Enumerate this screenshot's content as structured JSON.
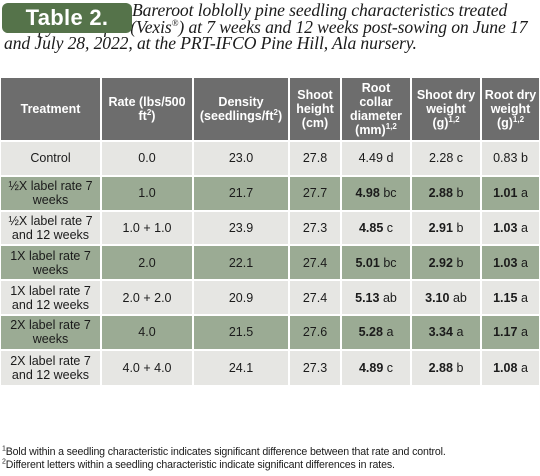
{
  "caption": {
    "label": "Table 2.",
    "text": "Bareroot loblolly pine seedling characteristics treated with pyrimisulfan (Vexis",
    "reg_mark": "®",
    "text_after": ") at 7 weeks and 12 weeks post-sowing on June 17 and July 28, 2022, at the PRT-IFCO Pine Hill, Ala nursery."
  },
  "header": {
    "treatment": "Treatment",
    "rate": "Rate (lbs/500 ft",
    "rate_sup": "2",
    "rate_end": ")",
    "density": "Density (seedlings/ft",
    "density_sup": "2",
    "density_end": ")",
    "shoot_height": "Shoot height (cm)",
    "root_collar": "Root collar diameter (mm)",
    "root_collar_sup": "1,2",
    "shoot_dry": "Shoot dry weight (g)",
    "shoot_dry_sup": "1,2",
    "root_dry": "Root dry weight (g)",
    "root_dry_sup": "1,2"
  },
  "rows": [
    {
      "treatment": "Control",
      "rate": "0.0",
      "density": "23.0",
      "shoot_height": "27.8",
      "rcd_value": "4.49",
      "rcd_bold": false,
      "rcd_letter": "d",
      "sdw_value": "2.28",
      "sdw_bold": false,
      "sdw_letter": "c",
      "rdw_value": "0.83",
      "rdw_bold": false,
      "rdw_letter": "b"
    },
    {
      "treatment": "½X label rate 7 weeks",
      "rate": "1.0",
      "density": "21.7",
      "shoot_height": "27.7",
      "rcd_value": "4.98",
      "rcd_bold": true,
      "rcd_letter": "bc",
      "sdw_value": "2.88",
      "sdw_bold": true,
      "sdw_letter": "b",
      "rdw_value": "1.01",
      "rdw_bold": true,
      "rdw_letter": "a"
    },
    {
      "treatment": "½X label rate 7 and 12 weeks",
      "rate": "1.0 + 1.0",
      "density": "23.9",
      "shoot_height": "27.3",
      "rcd_value": "4.85",
      "rcd_bold": true,
      "rcd_letter": "c",
      "sdw_value": "2.91",
      "sdw_bold": true,
      "sdw_letter": "b",
      "rdw_value": "1.03",
      "rdw_bold": true,
      "rdw_letter": "a"
    },
    {
      "treatment": "1X label rate 7 weeks",
      "rate": "2.0",
      "density": "22.1",
      "shoot_height": "27.4",
      "rcd_value": "5.01",
      "rcd_bold": true,
      "rcd_letter": "bc",
      "sdw_value": "2.92",
      "sdw_bold": true,
      "sdw_letter": "b",
      "rdw_value": "1.03",
      "rdw_bold": true,
      "rdw_letter": "a"
    },
    {
      "treatment": "1X label rate 7 and 12 weeks",
      "rate": "2.0 + 2.0",
      "density": "20.9",
      "shoot_height": "27.4",
      "rcd_value": "5.13",
      "rcd_bold": true,
      "rcd_letter": "ab",
      "sdw_value": "3.10",
      "sdw_bold": true,
      "sdw_letter": "ab",
      "rdw_value": "1.15",
      "rdw_bold": true,
      "rdw_letter": "a"
    },
    {
      "treatment": "2X label rate 7 weeks",
      "rate": "4.0",
      "density": "21.5",
      "shoot_height": "27.6",
      "rcd_value": "5.28",
      "rcd_bold": true,
      "rcd_letter": "a",
      "sdw_value": "3.34",
      "sdw_bold": true,
      "sdw_letter": "a",
      "rdw_value": "1.17",
      "rdw_bold": true,
      "rdw_letter": "a"
    },
    {
      "treatment": "2X label rate 7 and 12 weeks",
      "rate": "4.0 + 4.0",
      "density": "24.1",
      "shoot_height": "27.3",
      "rcd_value": "4.89",
      "rcd_bold": true,
      "rcd_letter": "c",
      "sdw_value": "2.88",
      "sdw_bold": true,
      "sdw_letter": "b",
      "rdw_value": "1.08",
      "rdw_bold": true,
      "rdw_letter": "a"
    }
  ],
  "footnotes": [
    {
      "sup": "1",
      "text": "Bold within a seedling characteristic indicates significant difference between that rate and control."
    },
    {
      "sup": "2",
      "text": "Different letters within a seedling characteristic indicate significant differences in rates."
    }
  ],
  "colors": {
    "badge": "#55734a",
    "header_bg": "#6d6d6d",
    "row_light": "#e6e6e3",
    "row_green": "#9bab94"
  }
}
